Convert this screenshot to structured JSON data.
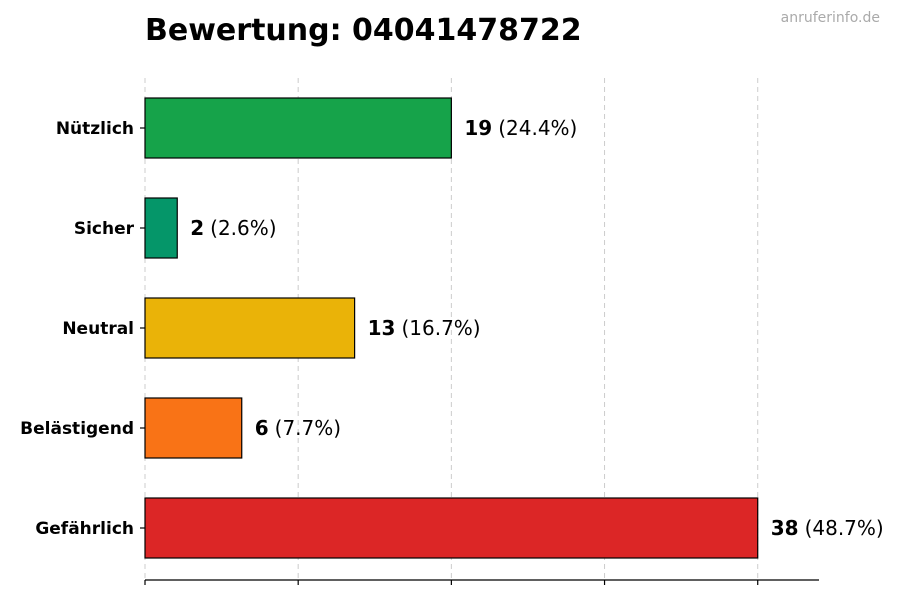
{
  "title": "Bewertung: 04041478722",
  "watermark": "anruferinfo.de",
  "chart_data": {
    "type": "bar",
    "orientation": "horizontal",
    "categories": [
      "Nützlich",
      "Sicher",
      "Neutral",
      "Belästigend",
      "Gefährlich"
    ],
    "values": [
      19,
      2,
      13,
      6,
      38
    ],
    "percent_labels": [
      "(24.4%)",
      "(2.6%)",
      "(16.7%)",
      "(7.7%)",
      "(48.7%)"
    ],
    "colors": [
      "#16a34a",
      "#059669",
      "#eab308",
      "#f97316",
      "#dc2626"
    ],
    "xlim": [
      0,
      41.8
    ],
    "xticks": [
      0,
      9.5,
      19,
      28.5,
      38
    ],
    "grid": true
  }
}
